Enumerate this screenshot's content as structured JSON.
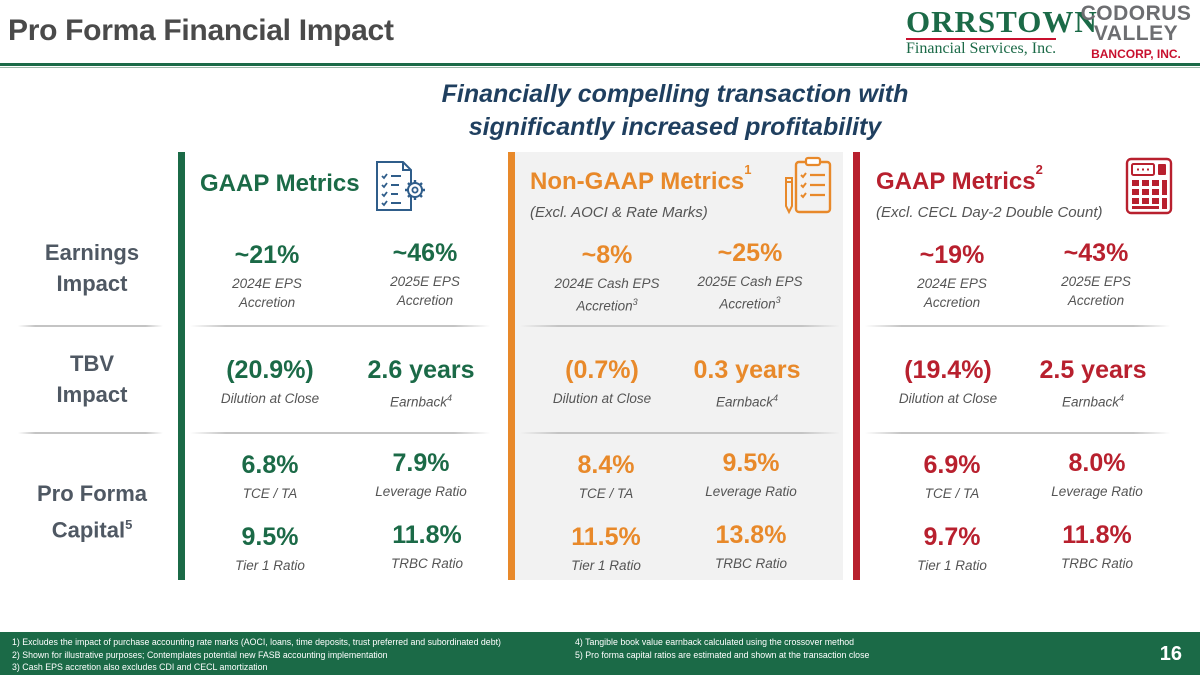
{
  "header": {
    "title": "Pro Forma Financial Impact"
  },
  "logos": {
    "orrstown": {
      "name": "ORRSTOWN",
      "sub": "Financial Services, Inc."
    },
    "codorus": {
      "line1": "CODORUS",
      "line2": "VALLEY",
      "line3": "BANCORP, INC."
    }
  },
  "headline": {
    "line1": "Financially compelling transaction with",
    "line2": "significantly increased profitability"
  },
  "row_labels": {
    "earnings": {
      "line1": "Earnings",
      "line2": "Impact"
    },
    "tbv": {
      "line1": "TBV",
      "line2": "Impact"
    },
    "capital": {
      "line1": "Pro Forma",
      "line2": "Capital",
      "sup": "5"
    }
  },
  "sections": {
    "gaap": {
      "title": "GAAP Metrics",
      "color": "#1b6a47",
      "icon": "document-gear-icon",
      "eps_2024": {
        "value": "~21%",
        "label1": "2024E EPS",
        "label2": "Accretion"
      },
      "eps_2025": {
        "value": "~46%",
        "label1": "2025E EPS",
        "label2": "Accretion"
      },
      "dilution": {
        "value": "(20.9%)",
        "label": "Dilution at Close"
      },
      "earnback": {
        "value": "2.6 years",
        "label": "Earnback",
        "sup": "4"
      },
      "tce": {
        "value": "6.8%",
        "label": "TCE / TA"
      },
      "leverage": {
        "value": "7.9%",
        "label": "Leverage Ratio"
      },
      "tier1": {
        "value": "9.5%",
        "label": "Tier 1 Ratio"
      },
      "trbc": {
        "value": "11.8%",
        "label": "TRBC Ratio"
      }
    },
    "nongaap": {
      "title": "Non-GAAP Metrics",
      "title_sup": "1",
      "subtitle": "(Excl. AOCI & Rate Marks)",
      "color": "#e8892a",
      "icon": "clipboard-checklist-icon",
      "eps_2024": {
        "value": "~8%",
        "label1": "2024E Cash EPS",
        "label2": "Accretion",
        "sup": "3"
      },
      "eps_2025": {
        "value": "~25%",
        "label1": "2025E Cash EPS",
        "label2": "Accretion",
        "sup": "3"
      },
      "dilution": {
        "value": "(0.7%)",
        "label": "Dilution at Close"
      },
      "earnback": {
        "value": "0.3 years",
        "label": "Earnback",
        "sup": "4"
      },
      "tce": {
        "value": "8.4%",
        "label": "TCE / TA"
      },
      "leverage": {
        "value": "9.5%",
        "label": "Leverage Ratio"
      },
      "tier1": {
        "value": "11.5%",
        "label": "Tier 1 Ratio"
      },
      "trbc": {
        "value": "13.8%",
        "label": "TRBC Ratio"
      }
    },
    "gaap_cecl": {
      "title": "GAAP Metrics",
      "title_sup": "2",
      "subtitle": "(Excl. CECL Day-2 Double Count)",
      "color": "#b8202e",
      "icon": "calculator-icon",
      "eps_2024": {
        "value": "~19%",
        "label1": "2024E EPS",
        "label2": "Accretion"
      },
      "eps_2025": {
        "value": "~43%",
        "label1": "2025E EPS",
        "label2": "Accretion"
      },
      "dilution": {
        "value": "(19.4%)",
        "label": "Dilution at Close"
      },
      "earnback": {
        "value": "2.5 years",
        "label": "Earnback",
        "sup": "4"
      },
      "tce": {
        "value": "6.9%",
        "label": "TCE / TA"
      },
      "leverage": {
        "value": "8.0%",
        "label": "Leverage Ratio"
      },
      "tier1": {
        "value": "9.7%",
        "label": "Tier 1 Ratio"
      },
      "trbc": {
        "value": "11.8%",
        "label": "TRBC Ratio"
      }
    }
  },
  "footnotes": {
    "left": [
      "1) Excludes the impact of purchase accounting rate marks (AOCI, loans, time deposits, trust preferred and subordinated debt)",
      "2) Shown for illustrative purposes; Contemplates potential new FASB accounting implementation",
      "3) Cash EPS accretion also excludes CDI and CECL amortization"
    ],
    "right": [
      "4) Tangible book value earnback calculated using the crossover method",
      "5) Pro forma capital ratios are estimated and shown at the transaction close"
    ]
  },
  "page_number": "16"
}
